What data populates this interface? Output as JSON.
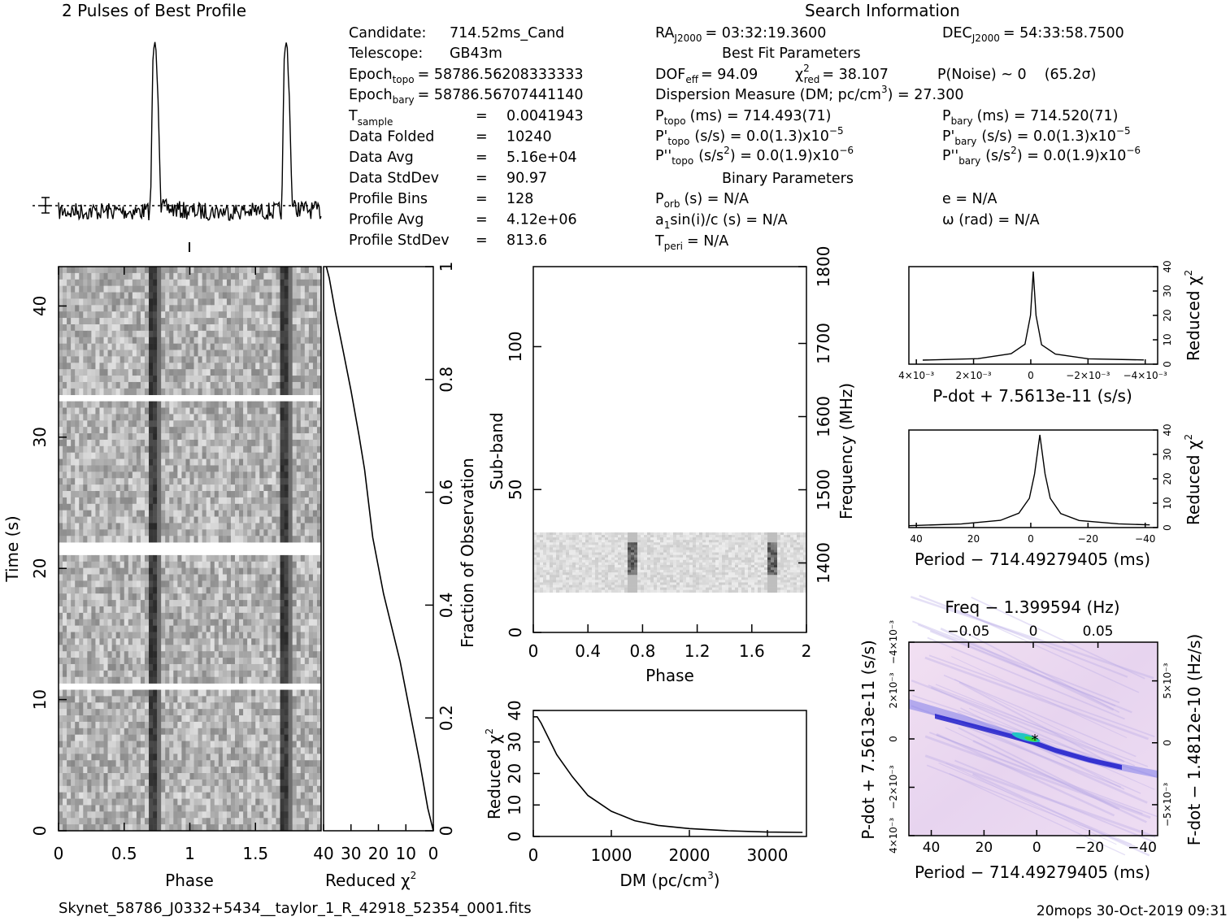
{
  "titles": {
    "profile": "2 Pulses of Best Profile",
    "search": "Search Information",
    "best_fit": "Best Fit Parameters",
    "binary": "Binary Parameters"
  },
  "info": {
    "candidate": {
      "label": "Candidate:",
      "value": "714.52ms_Cand"
    },
    "telescope": {
      "label": "Telescope:",
      "value": "GB43m"
    },
    "epoch_topo": {
      "label": "Epoch",
      "sub": "topo",
      "value": "= 58786.56208333333"
    },
    "epoch_bary": {
      "label": "Epoch",
      "sub": "bary",
      "value": "= 58786.56707441140"
    },
    "rows": [
      {
        "label": "T",
        "sub": "sample",
        "value": "0.0041943"
      },
      {
        "label": "Data Folded",
        "sub": "",
        "value": "10240"
      },
      {
        "label": "Data Avg",
        "sub": "",
        "value": "5.16e+04"
      },
      {
        "label": "Data StdDev",
        "sub": "",
        "value": "90.97"
      },
      {
        "label": "Profile Bins",
        "sub": "",
        "value": "128"
      },
      {
        "label": "Profile Avg",
        "sub": "",
        "value": "4.12e+06"
      },
      {
        "label": "Profile StdDev",
        "sub": "",
        "value": "813.6"
      }
    ],
    "ra": "= 03:32:19.3600",
    "dec": "= 54:33:58.7500",
    "ra_label": "RA",
    "dec_label": "DEC",
    "coord_sub": "J2000",
    "dof": "DOF",
    "dof_sub": "eff",
    "dof_value": "= 94.09",
    "chi_value": "= 38.107",
    "chi_sub": "red",
    "pnoise": "P(Noise) ~ 0",
    "sigma": "(65.2σ)",
    "dm_line": "Dispersion Measure (DM; pc/cm",
    "dm_value": ") = 27.300",
    "ptopo": "(ms) =  714.493(71)",
    "pbary": "(ms) =  714.520(71)",
    "pdtopo": "(s/s) = 0.0(1.3)x10",
    "pdbary": "(s/s) = 0.0(1.3)x10",
    "pdexp": "−5",
    "pddtopo": "(s/s",
    "pddbary": "(s/s",
    "pddval": ") = 0.0(1.9)x10",
    "pddexp": "−6",
    "porb": "(s) = N/A",
    "ecc": "e = N/A",
    "asini": "a",
    "asini_rest": "sin(i)/c (s) = N/A",
    "omega": "ω (rad) = N/A",
    "tperi": "= N/A",
    "sub_topo": "topo",
    "sub_bary": "bary",
    "sub_orb": "orb",
    "sub_peri": "peri",
    "sub_one": "1"
  },
  "axes": {
    "time_label": "Time (s)",
    "phase_label": "Phase",
    "redchi_label": "Reduced χ",
    "frac_label": "Fraction of Observation",
    "subband_label": "Sub-band",
    "freq_label": "Frequency (MHz)",
    "dm_label": "DM (pc/cm",
    "dm_label_end": ")",
    "pdot_label": "P-dot + 7.5613e-11 (s/s)",
    "period_label": "Period − 714.49279405 (ms)",
    "freq_top_label": "Freq − 1.399594 (Hz)",
    "pdot_left_label": "P-dot + 7.5613e-11 (s/s)",
    "fdot_right_label": "F-dot − 1.4812e-10 (Hz/s)"
  },
  "ticks": {
    "time_y": [
      "0",
      "10",
      "20",
      "30",
      "40"
    ],
    "phase_x": [
      "0",
      "0.5",
      "1",
      "1.5"
    ],
    "redchi_x": [
      "40",
      "30",
      "20",
      "10",
      "0"
    ],
    "frac_y": [
      "0",
      "0.2",
      "0.4",
      "0.6",
      "0.8",
      "1"
    ],
    "subband_y": [
      "0",
      "50",
      "100"
    ],
    "freq_y": [
      "1400",
      "1500",
      "1600",
      "1700",
      "1800"
    ],
    "phase2_x": [
      "0",
      "0.4",
      "0.8",
      "1.2",
      "1.6",
      "2"
    ],
    "dm_x": [
      "0",
      "1000",
      "2000",
      "3000"
    ],
    "redchi_y": [
      "0",
      "10",
      "20",
      "30",
      "40"
    ],
    "pdot_x": [
      "4×10⁻³",
      "2×10⁻³",
      "0",
      "−2×10⁻³",
      "−4×10⁻³"
    ],
    "period_x": [
      "40",
      "20",
      "0",
      "−20",
      "−40"
    ],
    "freq_top": [
      "−0.05",
      "0",
      "0.05"
    ],
    "pdot_left": [
      "4×10⁻³",
      "−2×10⁻³",
      "0",
      "2×10⁻³",
      "−4×10⁻³"
    ],
    "fdot_right": [
      "−5×10⁻³",
      "0",
      "5×10⁻³"
    ]
  },
  "footer": {
    "filename": "Skynet_58786_J0332+5434__taylor_1_R_42918_52354_0001.fits",
    "stamp": "20mops 30-Oct-2019 09:31"
  },
  "chart_data": [
    {
      "type": "line",
      "title": "2 Pulses of Best Profile",
      "x": [
        0,
        0.7,
        0.72,
        0.74,
        0.76,
        0.78,
        1.0,
        1.7,
        1.72,
        1.74,
        1.76,
        1.78,
        2.0
      ],
      "series": [
        {
          "values": [
            0,
            0,
            0.9,
            0.95,
            0.6,
            0.02,
            0,
            0,
            0.9,
            0.95,
            0.6,
            0.02,
            0
          ]
        }
      ]
    },
    {
      "type": "heatmap",
      "xlabel": "Phase",
      "ylabel": "Time (s)",
      "xlim": [
        0,
        2
      ],
      "ylim": [
        0,
        43
      ],
      "pulse_phases": [
        0.73,
        1.73
      ],
      "gaps_s": [
        11,
        21.5,
        33
      ]
    },
    {
      "type": "line",
      "xlabel": "Reduced χ2",
      "ylabel": "Fraction of Observation",
      "xlim": [
        40,
        0
      ],
      "ylim": [
        0,
        1
      ],
      "x": [
        39,
        38,
        36,
        33,
        30,
        27,
        25,
        22,
        18,
        12,
        8,
        5,
        2,
        0
      ],
      "y": [
        1,
        0.98,
        0.92,
        0.85,
        0.78,
        0.7,
        0.64,
        0.52,
        0.42,
        0.3,
        0.2,
        0.12,
        0.04,
        0
      ]
    },
    {
      "type": "heatmap",
      "xlabel": "Phase",
      "ylabel": "Sub-band",
      "xlim": [
        0,
        2
      ],
      "ylim": [
        0,
        128
      ],
      "band_rows": [
        14,
        35
      ],
      "pulse_phases": [
        0.73,
        1.75
      ]
    },
    {
      "type": "line",
      "xlabel": "DM (pc/cm3)",
      "ylabel": "Reduced χ2",
      "xlim": [
        0,
        3500
      ],
      "ylim": [
        0,
        40
      ],
      "x": [
        0,
        50,
        100,
        200,
        300,
        500,
        700,
        1000,
        1300,
        1600,
        2000,
        2500,
        3000,
        3450
      ],
      "y": [
        38,
        38,
        36,
        31,
        26,
        19,
        13,
        8,
        5,
        3.5,
        2.5,
        1.8,
        1.4,
        1.3
      ]
    },
    {
      "type": "line",
      "xlabel": "P-dot + 7.5613e-11 (s/s)",
      "ylabel": "Reduced χ2",
      "ylim": [
        0,
        40
      ],
      "x": [
        0.004,
        0.002,
        0.0008,
        0.0003,
        0.0001,
        0,
        -0.0001,
        -0.0003,
        -0.0008,
        -0.002,
        -0.004
      ],
      "y": [
        2,
        2.5,
        4,
        8,
        20,
        38,
        20,
        8,
        4,
        2.5,
        2
      ]
    },
    {
      "type": "line",
      "xlabel": "Period − 714.49279405 (ms)",
      "ylabel": "Reduced χ2",
      "ylim": [
        0,
        40
      ],
      "x": [
        50,
        30,
        15,
        8,
        4,
        2,
        0,
        -2,
        -4,
        -8,
        -15,
        -30,
        -42
      ],
      "y": [
        1,
        1.5,
        3,
        6,
        12,
        22,
        38,
        22,
        12,
        6,
        3,
        1.5,
        1
      ]
    },
    {
      "type": "heatmap",
      "xlabel": "Period − 714.49279405 (ms)",
      "ylabel": "P-dot + 7.5613e-11 (s/s)",
      "xlim": [
        50,
        -45
      ],
      "peak": [
        0,
        0
      ]
    }
  ]
}
